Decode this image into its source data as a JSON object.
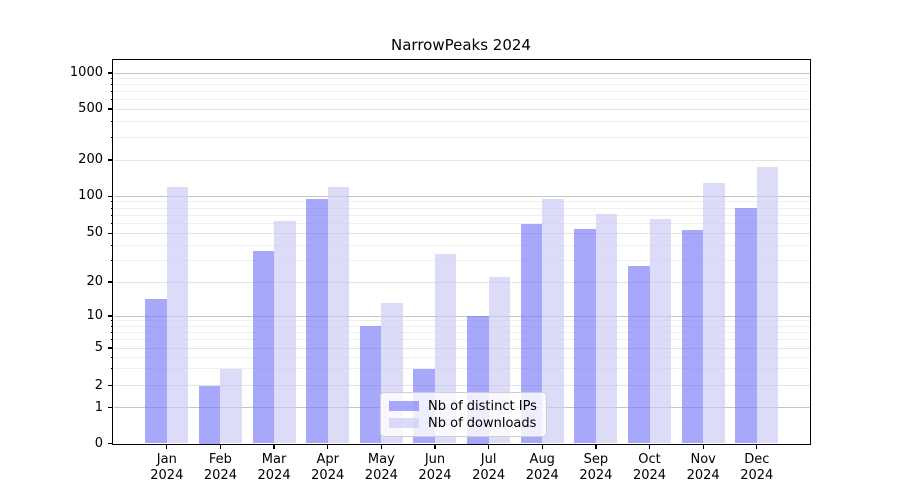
{
  "chart_data": {
    "type": "bar",
    "title": "NarrowPeaks 2024",
    "xlabel": "",
    "ylabel": "",
    "yscale": "symlog",
    "yticks": [
      0,
      1,
      2,
      5,
      10,
      20,
      50,
      100,
      200,
      500,
      1000
    ],
    "ylim": [
      0,
      1300
    ],
    "grid": true,
    "legend_position": "lower center",
    "categories": [
      "Jan 2024",
      "Feb 2024",
      "Mar 2024",
      "Apr 2024",
      "May 2024",
      "Jun 2024",
      "Jul 2024",
      "Aug 2024",
      "Sep 2024",
      "Oct 2024",
      "Nov 2024",
      "Dec 2024"
    ],
    "series": [
      {
        "name": "Nb of distinct IPs",
        "color": "#7979f7",
        "alpha": 0.65,
        "values": [
          14,
          2,
          36,
          95,
          8,
          3,
          10,
          60,
          54,
          27,
          53,
          80
        ]
      },
      {
        "name": "Nb of downloads",
        "color": "#c9c9f4",
        "alpha": 0.65,
        "values": [
          120,
          3,
          63,
          120,
          13,
          34,
          22,
          95,
          72,
          65,
          130,
          175
        ]
      }
    ]
  },
  "colors": {
    "background": "#ffffff",
    "spine": "#000000",
    "grid_major_pow10": "#c6c6c6",
    "grid_major": "#e3e3e3",
    "grid_minor": "#efefef",
    "tick_text": "#000000"
  }
}
